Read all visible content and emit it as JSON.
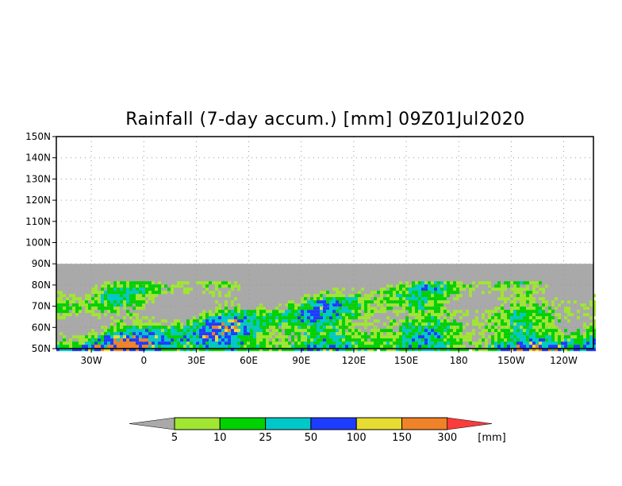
{
  "chart_data": {
    "type": "heatmap",
    "title": "Rainfall (7-day accum.) [mm] 09Z01Jul2020",
    "lat_range": [
      50,
      150
    ],
    "lon_range": [
      -50,
      257
    ],
    "lat_ticks": [
      "150N",
      "140N",
      "130N",
      "120N",
      "110N",
      "100N",
      "90N",
      "80N",
      "70N",
      "60N",
      "50N"
    ],
    "lat_tick_values": [
      150,
      140,
      130,
      120,
      110,
      100,
      90,
      80,
      70,
      60,
      50
    ],
    "lon_ticks": [
      "30W",
      "0",
      "30E",
      "60E",
      "90E",
      "120E",
      "150E",
      "180",
      "150W",
      "120W"
    ],
    "lon_tick_values": [
      -30,
      0,
      30,
      60,
      90,
      120,
      150,
      180,
      210,
      240
    ],
    "grid": "dotted",
    "no_data_above_lat": 90,
    "colorbar": {
      "levels": [
        "5",
        "10",
        "25",
        "50",
        "100",
        "150",
        "300"
      ],
      "unit": "[mm]",
      "colors": [
        "#a9a9a9",
        "#a0e632",
        "#00d200",
        "#00c8c8",
        "#1e3cff",
        "#e6dc32",
        "#f08228",
        "#fa3c3c"
      ]
    }
  }
}
